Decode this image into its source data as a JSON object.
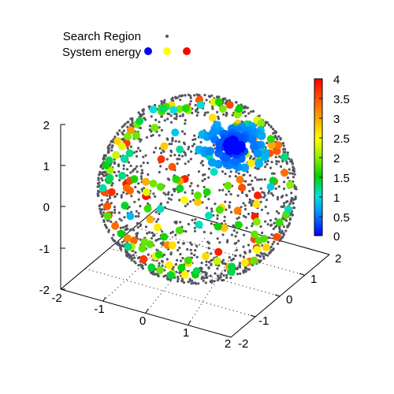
{
  "chart_data": {
    "type": "scatter",
    "projection": "3d",
    "grid": false,
    "legend_position": "top-left",
    "axes": {
      "x": {
        "range": [
          -2,
          2
        ],
        "ticks": [
          "-2",
          "-1",
          "0",
          "1",
          "2"
        ]
      },
      "y": {
        "range": [
          -2,
          2
        ],
        "ticks": [
          "-2",
          "-1",
          "0",
          "1",
          "2"
        ]
      },
      "z": {
        "range": [
          -2,
          2
        ],
        "ticks": [
          "-2",
          "-1",
          "0",
          "1",
          "2"
        ]
      }
    },
    "colorbar": {
      "range": [
        0,
        4
      ],
      "ticks": [
        "0",
        "0.5",
        "1",
        "1.5",
        "2",
        "2.5",
        "3",
        "3.5",
        "4"
      ],
      "colors": [
        "#0000ff",
        "#00e6e6",
        "#00d200",
        "#ffff00",
        "#ff8000",
        "#ff0000"
      ]
    },
    "series": [
      {
        "name": "Search Region",
        "color": "#55555e",
        "description_values": {
          "surface": "sphere",
          "radius": 2
        }
      },
      {
        "name": "System energy",
        "legend_colors": [
          "#0000ff",
          "#ffff00",
          "#ff0000"
        ],
        "value_range": [
          0,
          4
        ]
      }
    ]
  },
  "legend": {
    "search_region_label": "Search Region",
    "system_energy_label": "System energy"
  }
}
